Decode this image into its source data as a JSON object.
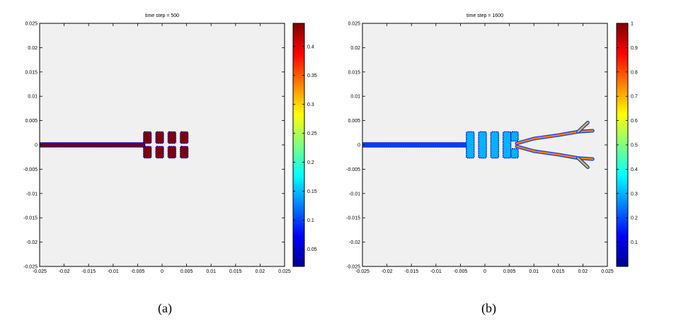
{
  "colors": {
    "background": "#ffffff",
    "axes_bg": "#f0f0f0",
    "axis": "#000000",
    "colormap": "jet"
  },
  "captions": {
    "a": "(a)",
    "b": "(b)"
  },
  "chart_data": [
    {
      "type": "heatmap",
      "title": "time step = 500",
      "xlabel": "",
      "ylabel": "",
      "xlim": [
        -0.025,
        0.025
      ],
      "ylim": [
        -0.025,
        0.025
      ],
      "xticks": [
        "-0.025",
        "-0.02",
        "-0.015",
        "-0.01",
        "-0.005",
        "0",
        "0.005",
        "0.01",
        "0.015",
        "0.02",
        "0.025"
      ],
      "yticks": [
        "-0.025",
        "-0.02",
        "-0.015",
        "-0.01",
        "-0.005",
        "0",
        "0.005",
        "0.01",
        "0.015",
        "0.02",
        "0.025"
      ],
      "grid": false,
      "colorbar": {
        "min": 0.02,
        "max": 0.44,
        "ticks": [
          "0.05",
          "0.1",
          "0.15",
          "0.2",
          "0.25",
          "0.3",
          "0.35",
          "0.4"
        ]
      },
      "channel": {
        "x_start": -0.025,
        "x_end": -0.0035,
        "y": 0,
        "half_width": 0.00045,
        "value": 0.44
      },
      "blocks": [
        {
          "x0": -0.0038,
          "x1": -0.0022,
          "y0": 0.0003,
          "y1": 0.0027,
          "value": 0.44
        },
        {
          "x0": -0.0013,
          "x1": 0.0003,
          "y0": 0.0003,
          "y1": 0.0027,
          "value": 0.44
        },
        {
          "x0": 0.0012,
          "x1": 0.0028,
          "y0": 0.0003,
          "y1": 0.0027,
          "value": 0.44
        },
        {
          "x0": 0.0037,
          "x1": 0.0053,
          "y0": 0.0003,
          "y1": 0.0027,
          "value": 0.44
        },
        {
          "x0": -0.0038,
          "x1": -0.0022,
          "y0": -0.0027,
          "y1": -0.0003,
          "value": 0.44
        },
        {
          "x0": -0.0013,
          "x1": 0.0003,
          "y0": -0.0027,
          "y1": -0.0003,
          "value": 0.44
        },
        {
          "x0": 0.0012,
          "x1": 0.0028,
          "y0": -0.0027,
          "y1": -0.0003,
          "value": 0.44
        },
        {
          "x0": 0.0037,
          "x1": 0.0053,
          "y0": -0.0027,
          "y1": -0.0003,
          "value": 0.44
        }
      ],
      "branches": []
    },
    {
      "type": "heatmap",
      "title": "time step = 1600",
      "xlabel": "",
      "ylabel": "",
      "xlim": [
        -0.025,
        0.025
      ],
      "ylim": [
        -0.025,
        0.025
      ],
      "xticks": [
        "-0.025",
        "-0.02",
        "-0.015",
        "-0.01",
        "-0.005",
        "0",
        "0.005",
        "0.01",
        "0.015",
        "0.02",
        "0.025"
      ],
      "yticks": [
        "-0.025",
        "-0.02",
        "-0.015",
        "-0.01",
        "-0.005",
        "0",
        "0.005",
        "0.01",
        "0.015",
        "0.02",
        "0.025"
      ],
      "grid": false,
      "colorbar": {
        "min": 0,
        "max": 1,
        "ticks": [
          "0.1",
          "0.2",
          "0.3",
          "0.4",
          "0.5",
          "0.6",
          "0.7",
          "0.8",
          "0.9",
          "1"
        ]
      },
      "channel": {
        "x_start": -0.025,
        "x_end": -0.0035,
        "y": 0,
        "half_width": 0.00045,
        "value": 0.2
      },
      "blocks": [
        {
          "x0": -0.0038,
          "x1": -0.0022,
          "y0": -0.0027,
          "y1": 0.0027,
          "value": 0.3
        },
        {
          "x0": -0.0013,
          "x1": 0.0003,
          "y0": -0.0027,
          "y1": 0.0027,
          "value": 0.3
        },
        {
          "x0": 0.0012,
          "x1": 0.0028,
          "y0": -0.0027,
          "y1": 0.0027,
          "value": 0.3
        },
        {
          "x0": 0.0037,
          "x1": 0.0053,
          "y0": -0.0027,
          "y1": 0.0027,
          "value": 0.3
        },
        {
          "x0": 0.0053,
          "x1": 0.0068,
          "y0": 0.0008,
          "y1": 0.0027,
          "value": 0.3
        },
        {
          "x0": 0.0053,
          "x1": 0.0068,
          "y0": -0.0027,
          "y1": -0.0008,
          "value": 0.3
        }
      ],
      "branches": [
        {
          "points": [
            [
              0.0065,
              0.0003
            ],
            [
              0.01,
              0.0013
            ],
            [
              0.015,
              0.002
            ],
            [
              0.019,
              0.0027
            ],
            [
              0.022,
              0.0029
            ]
          ],
          "value": 0.75
        },
        {
          "points": [
            [
              0.019,
              0.0027
            ],
            [
              0.021,
              0.0046
            ]
          ],
          "value": 0.7
        },
        {
          "points": [
            [
              0.0065,
              -0.0003
            ],
            [
              0.01,
              -0.0013
            ],
            [
              0.015,
              -0.002
            ],
            [
              0.019,
              -0.0027
            ],
            [
              0.022,
              -0.0029
            ]
          ],
          "value": 0.75
        },
        {
          "points": [
            [
              0.019,
              -0.0027
            ],
            [
              0.021,
              -0.0046
            ]
          ],
          "value": 0.7
        }
      ]
    }
  ]
}
